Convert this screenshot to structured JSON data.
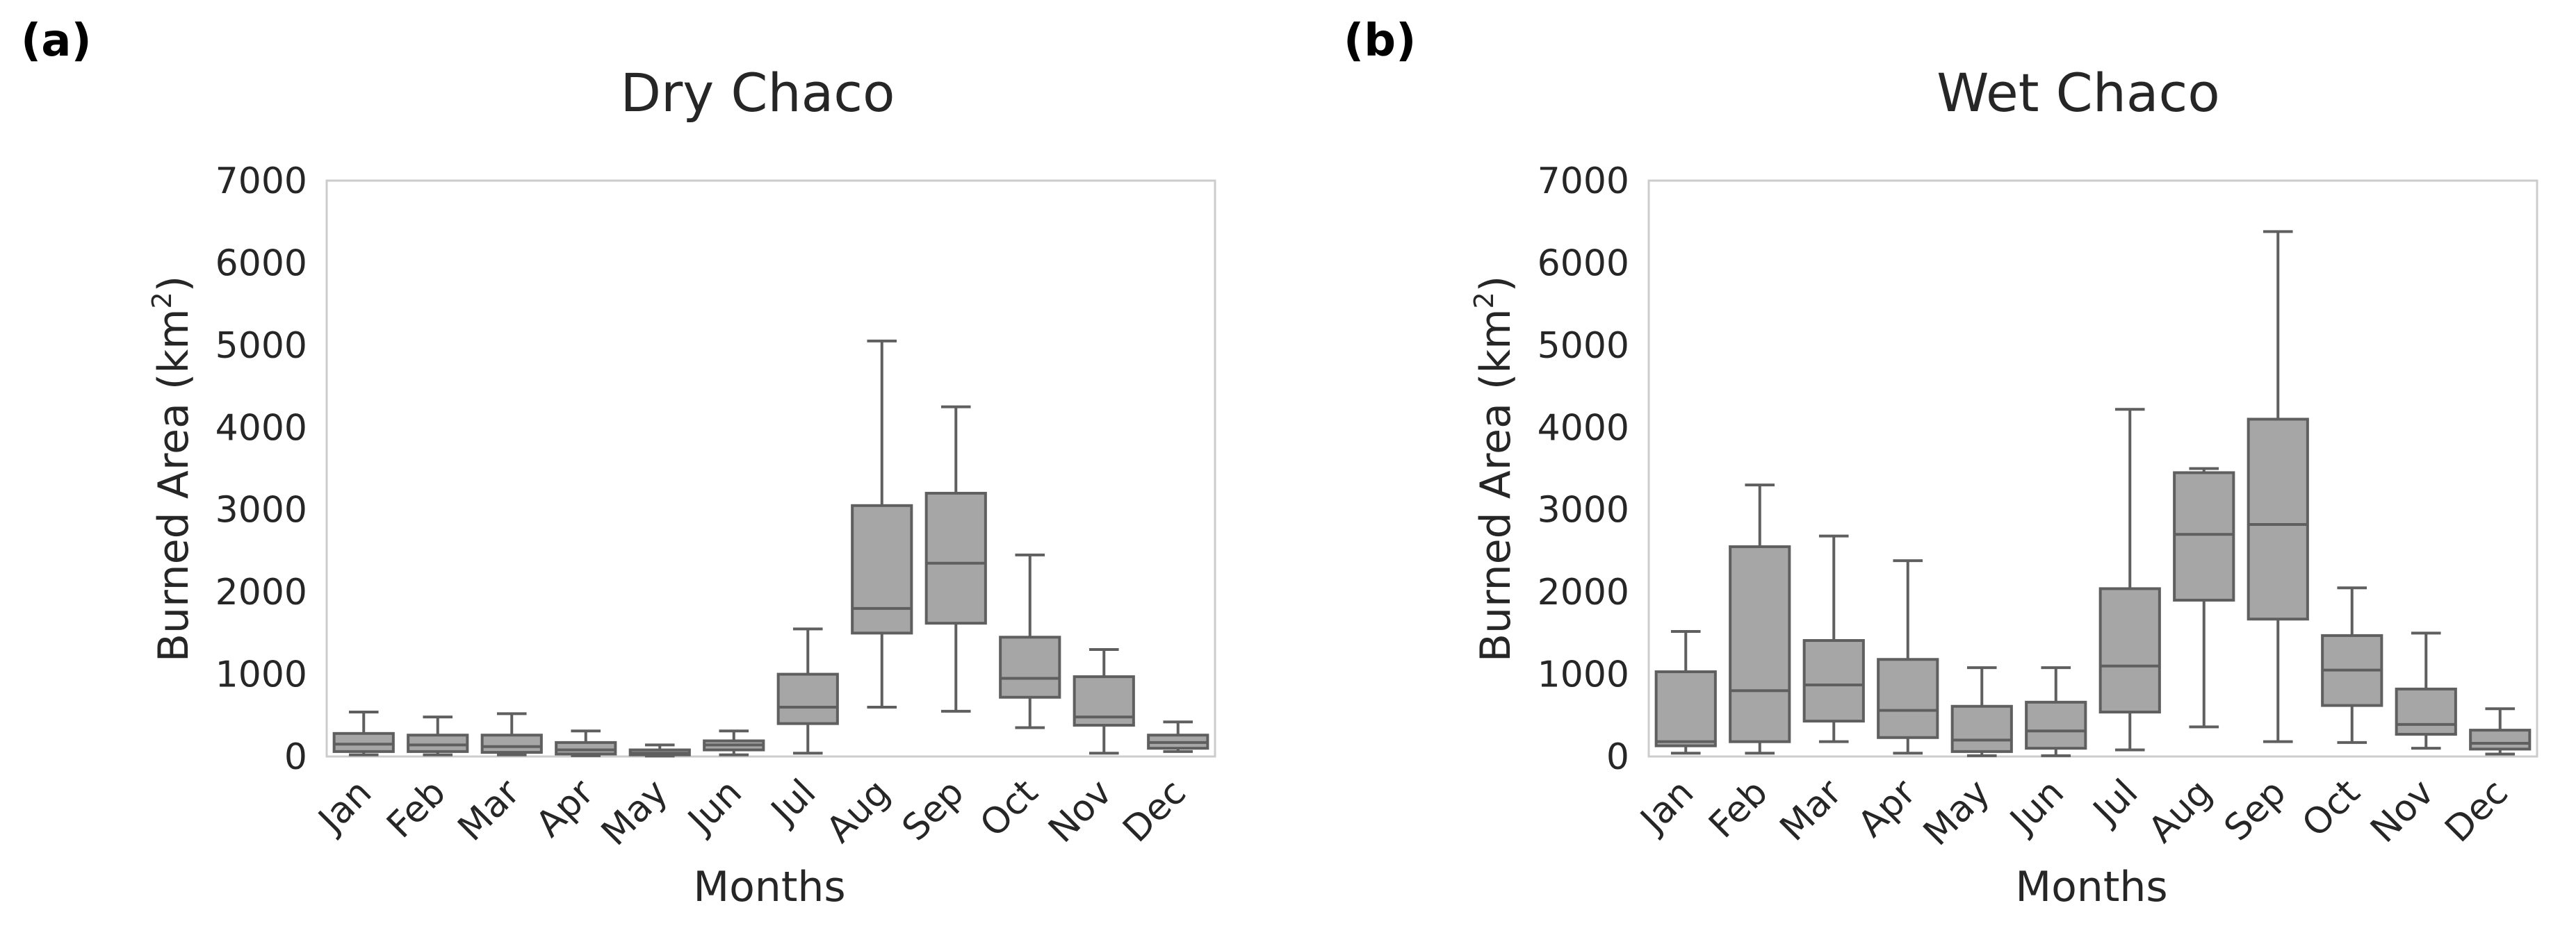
{
  "panels": [
    {
      "label": "(a)",
      "title": "Dry Chaco",
      "ylabel": "Burned Area (km",
      "ylabel_sup": "2",
      "ylabel_close": ")",
      "xlabel": "Months"
    },
    {
      "label": "(b)",
      "title": "Wet Chaco",
      "ylabel": "Burned Area (km",
      "ylabel_sup": "2",
      "ylabel_close": ")",
      "xlabel": "Months"
    }
  ],
  "colors": {
    "box_fill": "#a6a6a6",
    "box_edge": "#5f5f5f",
    "frame": "#cccccc",
    "text": "#262626"
  },
  "chart_data": [
    {
      "type": "box",
      "title": "Dry Chaco",
      "xlabel": "Months",
      "ylabel": "Burned Area (km2)",
      "ylim": [
        0,
        7000
      ],
      "yticks": [
        0,
        1000,
        2000,
        3000,
        4000,
        5000,
        6000,
        7000
      ],
      "categories": [
        "Jan",
        "Feb",
        "Mar",
        "Apr",
        "May",
        "Jun",
        "Jul",
        "Aug",
        "Sep",
        "Oct",
        "Nov",
        "Dec"
      ],
      "series": [
        {
          "name": "Jan",
          "min": 20,
          "q1": 60,
          "median": 150,
          "q3": 280,
          "max": 540
        },
        {
          "name": "Feb",
          "min": 20,
          "q1": 60,
          "median": 140,
          "q3": 260,
          "max": 480
        },
        {
          "name": "Mar",
          "min": 20,
          "q1": 50,
          "median": 120,
          "q3": 260,
          "max": 520
        },
        {
          "name": "Apr",
          "min": 10,
          "q1": 30,
          "median": 80,
          "q3": 170,
          "max": 310
        },
        {
          "name": "May",
          "min": 5,
          "q1": 20,
          "median": 40,
          "q3": 80,
          "max": 140
        },
        {
          "name": "Jun",
          "min": 20,
          "q1": 80,
          "median": 140,
          "q3": 190,
          "max": 310
        },
        {
          "name": "Jul",
          "min": 40,
          "q1": 400,
          "median": 600,
          "q3": 1000,
          "max": 1550
        },
        {
          "name": "Aug",
          "min": 600,
          "q1": 1500,
          "median": 1800,
          "q3": 3050,
          "max": 5050
        },
        {
          "name": "Sep",
          "min": 550,
          "q1": 1620,
          "median": 2350,
          "q3": 3200,
          "max": 4250
        },
        {
          "name": "Oct",
          "min": 350,
          "q1": 720,
          "median": 950,
          "q3": 1450,
          "max": 2450
        },
        {
          "name": "Nov",
          "min": 40,
          "q1": 380,
          "median": 480,
          "q3": 970,
          "max": 1300
        },
        {
          "name": "Dec",
          "min": 60,
          "q1": 100,
          "median": 170,
          "q3": 260,
          "max": 420
        }
      ]
    },
    {
      "type": "box",
      "title": "Wet Chaco",
      "xlabel": "Months",
      "ylabel": "Burned Area (km2)",
      "ylim": [
        0,
        7000
      ],
      "yticks": [
        0,
        1000,
        2000,
        3000,
        4000,
        5000,
        6000,
        7000
      ],
      "categories": [
        "Jan",
        "Feb",
        "Mar",
        "Apr",
        "May",
        "Jun",
        "Jul",
        "Aug",
        "Sep",
        "Oct",
        "Nov",
        "Dec"
      ],
      "series": [
        {
          "name": "Jan",
          "min": 40,
          "q1": 130,
          "median": 180,
          "q3": 1030,
          "max": 1520
        },
        {
          "name": "Feb",
          "min": 40,
          "q1": 180,
          "median": 800,
          "q3": 2550,
          "max": 3300
        },
        {
          "name": "Mar",
          "min": 180,
          "q1": 430,
          "median": 870,
          "q3": 1410,
          "max": 2680
        },
        {
          "name": "Apr",
          "min": 40,
          "q1": 230,
          "median": 560,
          "q3": 1180,
          "max": 2380
        },
        {
          "name": "May",
          "min": 10,
          "q1": 60,
          "median": 200,
          "q3": 610,
          "max": 1080
        },
        {
          "name": "Jun",
          "min": 10,
          "q1": 100,
          "median": 310,
          "q3": 660,
          "max": 1080
        },
        {
          "name": "Jul",
          "min": 80,
          "q1": 540,
          "median": 1100,
          "q3": 2040,
          "max": 4220
        },
        {
          "name": "Aug",
          "min": 360,
          "q1": 1900,
          "median": 2700,
          "q3": 3450,
          "max": 3500
        },
        {
          "name": "Sep",
          "min": 180,
          "q1": 1670,
          "median": 2820,
          "q3": 4100,
          "max": 6380
        },
        {
          "name": "Oct",
          "min": 170,
          "q1": 620,
          "median": 1050,
          "q3": 1470,
          "max": 2050
        },
        {
          "name": "Nov",
          "min": 100,
          "q1": 270,
          "median": 390,
          "q3": 820,
          "max": 1500
        },
        {
          "name": "Dec",
          "min": 30,
          "q1": 90,
          "median": 160,
          "q3": 320,
          "max": 580
        }
      ]
    }
  ]
}
